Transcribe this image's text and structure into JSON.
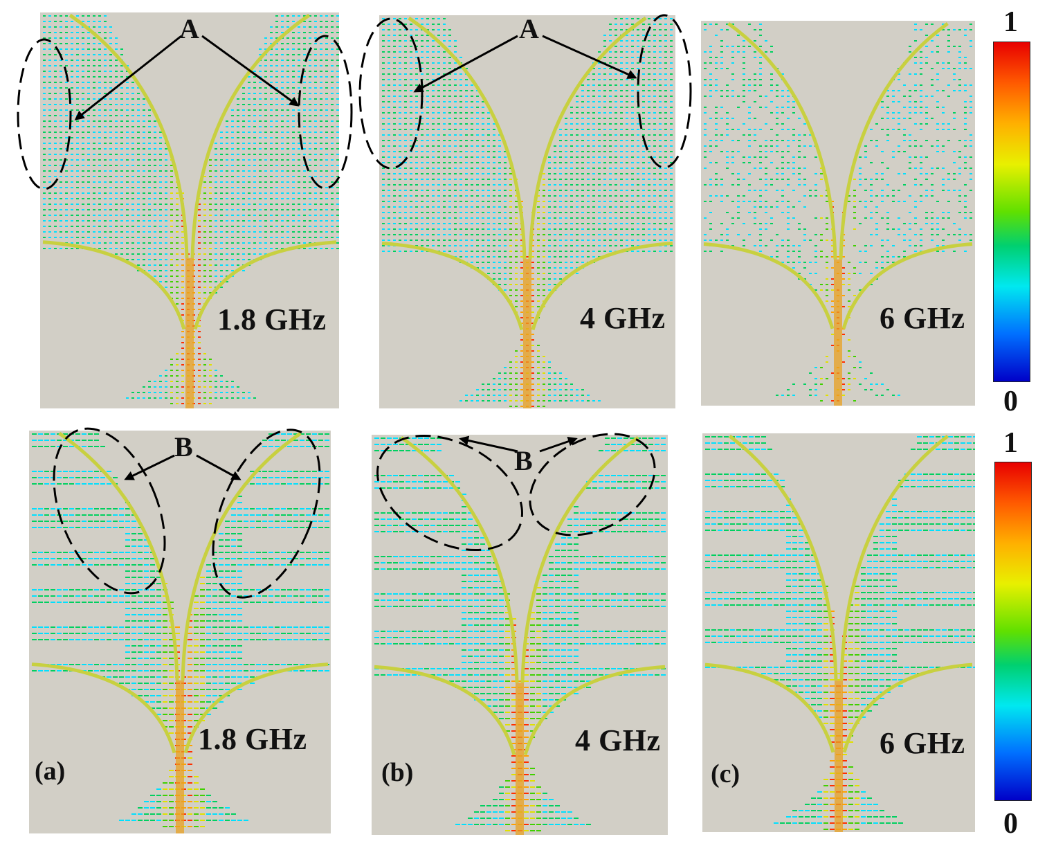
{
  "figure": {
    "panels": [
      {
        "row": "top",
        "col": "a",
        "freq_label": "1.8 GHz"
      },
      {
        "row": "top",
        "col": "b",
        "freq_label": "4 GHz"
      },
      {
        "row": "top",
        "col": "c",
        "freq_label": "6 GHz"
      },
      {
        "row": "bottom",
        "col": "a",
        "freq_label": "1.8 GHz",
        "sublabel": "(a)"
      },
      {
        "row": "bottom",
        "col": "b",
        "freq_label": "4 GHz",
        "sublabel": "(b)"
      },
      {
        "row": "bottom",
        "col": "c",
        "freq_label": "6 GHz",
        "sublabel": "(c)"
      }
    ],
    "annotations": {
      "top_marker": "A",
      "bottom_marker": "B"
    },
    "colorbars": [
      {
        "max_label": "1",
        "min_label": "0"
      },
      {
        "max_label": "1",
        "min_label": "0"
      }
    ],
    "colormap": [
      "#0000c8",
      "#0060ff",
      "#00e0ff",
      "#00d060",
      "#40d000",
      "#e0e000",
      "#ffa000",
      "#ff3000",
      "#e00000"
    ],
    "background_color": "#d2cfc6"
  }
}
